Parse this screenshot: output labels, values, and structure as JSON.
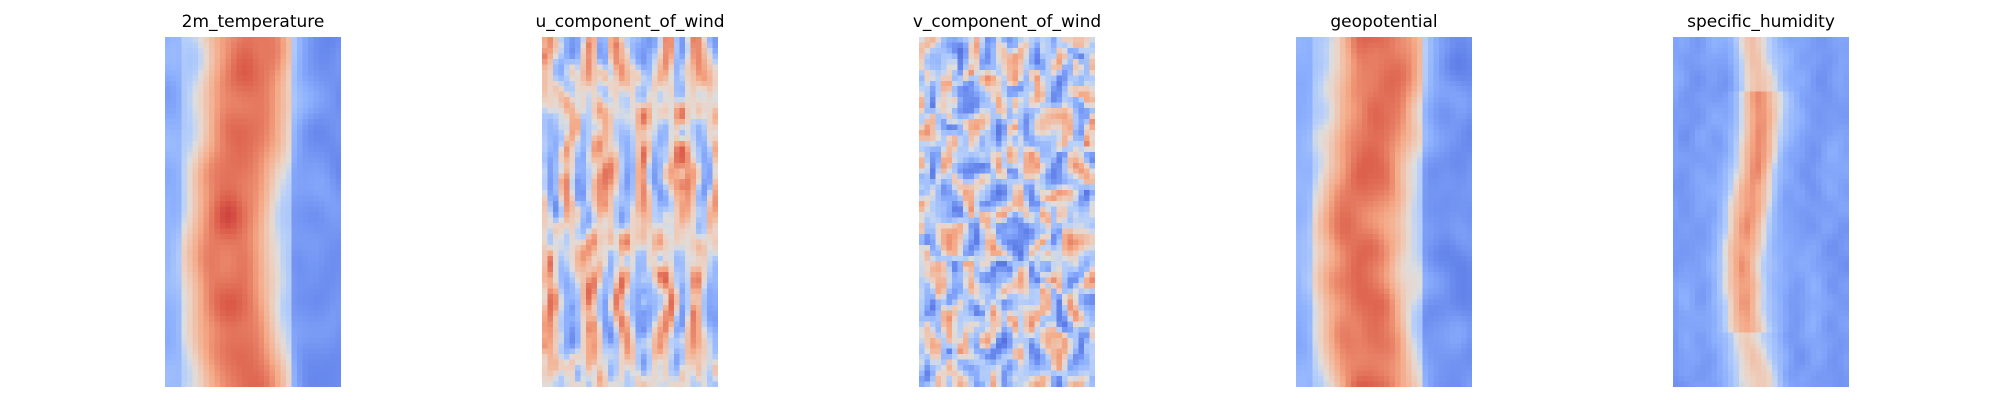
{
  "chart_data": [
    {
      "type": "heatmap",
      "title": "2m_temperature",
      "colormap": "coolwarm",
      "axes_visible": false,
      "grid": false,
      "legend": "none",
      "pattern": "warm-central-band",
      "seed": 11
    },
    {
      "type": "heatmap",
      "title": "u_component_of_wind",
      "colormap": "coolwarm",
      "axes_visible": false,
      "grid": false,
      "legend": "none",
      "pattern": "vertical-streaks",
      "seed": 23
    },
    {
      "type": "heatmap",
      "title": "v_component_of_wind",
      "colormap": "coolwarm",
      "axes_visible": false,
      "grid": false,
      "legend": "none",
      "pattern": "speckled-eddies",
      "seed": 37
    },
    {
      "type": "heatmap",
      "title": "geopotential",
      "colormap": "coolwarm",
      "axes_visible": false,
      "grid": false,
      "legend": "none",
      "pattern": "warm-central-band",
      "seed": 41
    },
    {
      "type": "heatmap",
      "title": "specific_humidity",
      "colormap": "coolwarm",
      "axes_visible": false,
      "grid": false,
      "legend": "none",
      "pattern": "cold-with-narrow-warm-core",
      "seed": 53
    }
  ]
}
